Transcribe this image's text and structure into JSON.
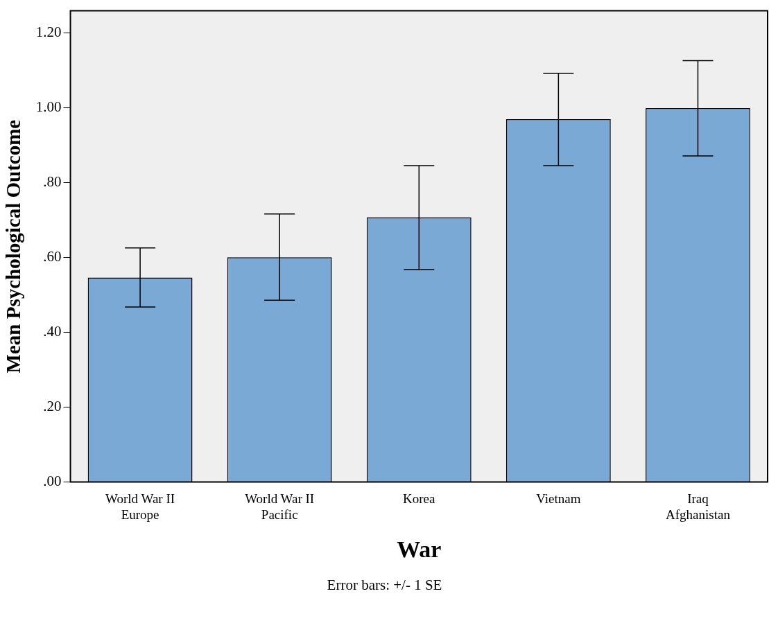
{
  "chart_data": {
    "type": "bar",
    "categories": [
      "World War II\nEurope",
      "World War II\nPacific",
      "Korea",
      "Vietnam",
      "Iraq\nAfghanistan"
    ],
    "values": [
      0.547,
      0.601,
      0.708,
      0.97,
      1.0
    ],
    "errors": [
      [
        0.468,
        0.626
      ],
      [
        0.486,
        0.717
      ],
      [
        0.568,
        0.846
      ],
      [
        0.846,
        1.093
      ],
      [
        0.872,
        1.127
      ]
    ],
    "color": "#7ba9d6",
    "xlabel": "War",
    "ylabel": "Mean Psychological Outcome",
    "ylim": [
      0,
      1.26
    ],
    "yticks": [
      {
        "value": 0,
        "label": ".00"
      },
      {
        "value": 0.2,
        "label": ".20"
      },
      {
        "value": 0.4,
        "label": ".40"
      },
      {
        "value": 0.6,
        "label": ".60"
      },
      {
        "value": 0.8,
        "label": ".80"
      },
      {
        "value": 1.0,
        "label": "1.00"
      },
      {
        "value": 1.2,
        "label": "1.20"
      }
    ],
    "grid": false,
    "legend": false,
    "annotations": [
      "Error bars: +/- 1 SE"
    ]
  }
}
